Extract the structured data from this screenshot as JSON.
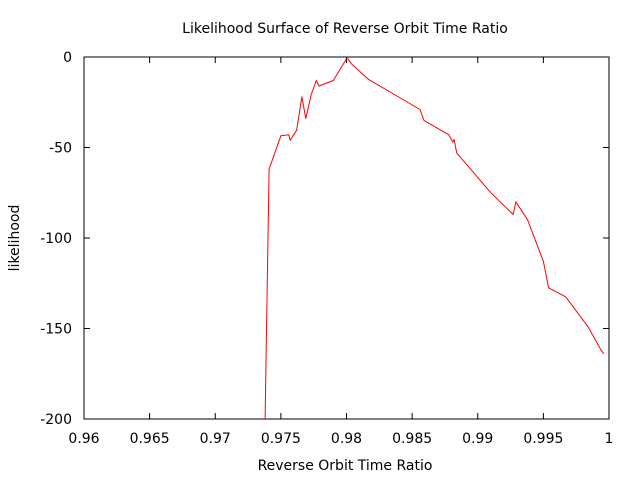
{
  "chart_data": {
    "type": "line",
    "title": "Likelihood Surface of Reverse Orbit Time Ratio",
    "xlabel": "Reverse Orbit Time Ratio",
    "ylabel": "likelihood",
    "xlim": [
      0.96,
      1.0
    ],
    "ylim": [
      -200,
      0
    ],
    "xticks": [
      0.96,
      0.965,
      0.97,
      0.975,
      0.98,
      0.985,
      0.99,
      0.995,
      1.0
    ],
    "xtick_labels": [
      "0.96",
      "0.965",
      "0.97",
      "0.975",
      "0.98",
      "0.985",
      "0.99",
      "0.995",
      "1"
    ],
    "yticks": [
      0,
      -50,
      -100,
      -150,
      -200
    ],
    "ytick_labels": [
      "0",
      "-50",
      "-100",
      "-150",
      "-200"
    ],
    "grid": false,
    "series": [
      {
        "color": "#ff0000",
        "x": [
          0.9738,
          0.9741,
          0.975,
          0.9756,
          0.9757,
          0.9762,
          0.9766,
          0.9769,
          0.9773,
          0.9777,
          0.9779,
          0.979,
          0.98,
          0.9801,
          0.9804,
          0.9817,
          0.9856,
          0.9859,
          0.9878,
          0.9881,
          0.9882,
          0.9884,
          0.991,
          0.9927,
          0.9929,
          0.9938,
          0.995,
          0.9954,
          0.9967,
          0.9984,
          0.9994,
          0.9996
        ],
        "y": [
          -200,
          -62,
          -43.5,
          -43,
          -46,
          -40.5,
          -22,
          -34,
          -21,
          -13,
          -16,
          -13,
          -1,
          -1,
          -4,
          -12.5,
          -29,
          -35,
          -43,
          -47,
          -45.5,
          -53,
          -75,
          -87,
          -80,
          -90,
          -113,
          -127.5,
          -132.5,
          -149,
          -162,
          -164
        ]
      }
    ]
  }
}
